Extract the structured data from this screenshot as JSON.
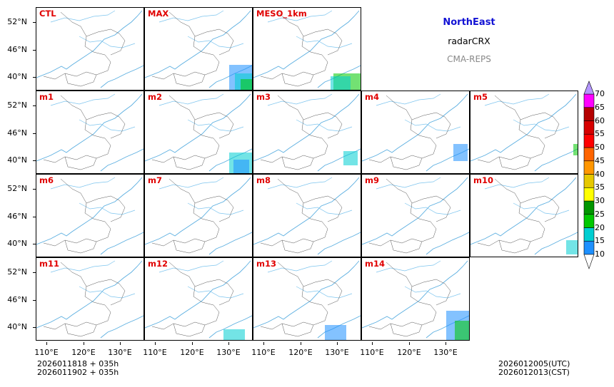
{
  "legend": {
    "region": "NorthEast",
    "variable": "radarCRX",
    "source": "CMA-REPS"
  },
  "panels": [
    {
      "label": "CTL"
    },
    {
      "label": "MAX"
    },
    {
      "label": "MESO_1km"
    },
    {
      "label": "m1"
    },
    {
      "label": "m2"
    },
    {
      "label": "m3"
    },
    {
      "label": "m4"
    },
    {
      "label": "m5"
    },
    {
      "label": "m6"
    },
    {
      "label": "m7"
    },
    {
      "label": "m8"
    },
    {
      "label": "m9"
    },
    {
      "label": "m10"
    },
    {
      "label": "m11"
    },
    {
      "label": "m12"
    },
    {
      "label": "m13"
    },
    {
      "label": "m14"
    }
  ],
  "axes": {
    "lat_labels": [
      "52°N",
      "46°N",
      "40°N"
    ],
    "lon_labels": [
      "110°E",
      "120°E",
      "130°E"
    ]
  },
  "colorbar": {
    "levels": [
      "10",
      "15",
      "20",
      "25",
      "30",
      "35",
      "40",
      "45",
      "50",
      "55",
      "60",
      "65",
      "70"
    ],
    "colors": [
      "#1e90ff",
      "#00ced1",
      "#00c800",
      "#009600",
      "#ffff00",
      "#e6c800",
      "#ff9600",
      "#ff6400",
      "#ff0000",
      "#d70000",
      "#b40000",
      "#ff00ff",
      "#9600b4",
      "#b496ff"
    ],
    "units_label": ""
  },
  "footer": {
    "init_utc": "2026011818  +  035h",
    "init_cst": "2026011902  +  035h",
    "valid_utc": "2026012005(UTC)",
    "valid_cst": "2026012013(CST)"
  }
}
